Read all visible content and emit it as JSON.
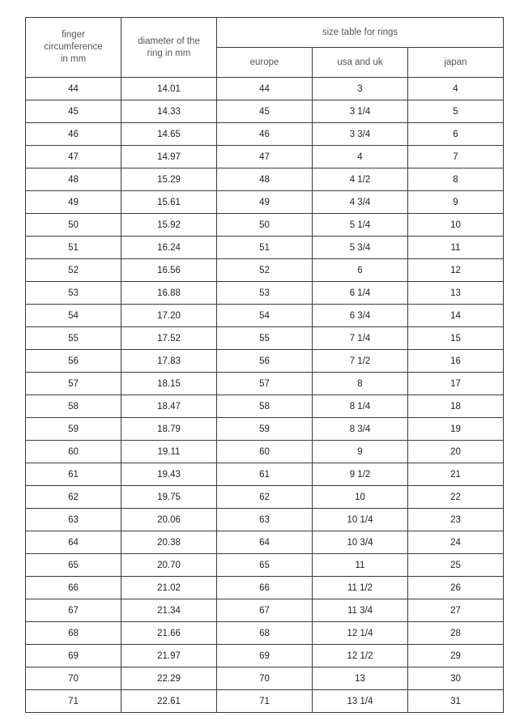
{
  "header": {
    "finger": "finger circumference in mm",
    "diameter": "diameter of the ring in mm",
    "group": "size table for rings",
    "europe": "europe",
    "usa_uk": "usa and uk",
    "japan": "japan"
  },
  "rows": [
    [
      "44",
      "14.01",
      "44",
      "3",
      "4"
    ],
    [
      "45",
      "14.33",
      "45",
      "3 1/4",
      "5"
    ],
    [
      "46",
      "14.65",
      "46",
      "3 3/4",
      "6"
    ],
    [
      "47",
      "14.97",
      "47",
      "4",
      "7"
    ],
    [
      "48",
      "15.29",
      "48",
      "4 1/2",
      "8"
    ],
    [
      "49",
      "15.61",
      "49",
      "4 3/4",
      "9"
    ],
    [
      "50",
      "15.92",
      "50",
      "5 1/4",
      "10"
    ],
    [
      "51",
      "16.24",
      "51",
      "5 3/4",
      "11"
    ],
    [
      "52",
      "16.56",
      "52",
      "6",
      "12"
    ],
    [
      "53",
      "16.88",
      "53",
      "6 1/4",
      "13"
    ],
    [
      "54",
      "17.20",
      "54",
      "6 3/4",
      "14"
    ],
    [
      "55",
      "17.52",
      "55",
      "7 1/4",
      "15"
    ],
    [
      "56",
      "17.83",
      "56",
      "7 1/2",
      "16"
    ],
    [
      "57",
      "18.15",
      "57",
      "8",
      "17"
    ],
    [
      "58",
      "18.47",
      "58",
      "8 1/4",
      "18"
    ],
    [
      "59",
      "18.79",
      "59",
      "8 3/4",
      "19"
    ],
    [
      "60",
      "19.11",
      "60",
      "9",
      "20"
    ],
    [
      "61",
      "19.43",
      "61",
      "9 1/2",
      "21"
    ],
    [
      "62",
      "19.75",
      "62",
      "10",
      "22"
    ],
    [
      "63",
      "20.06",
      "63",
      "10 1/4",
      "23"
    ],
    [
      "64",
      "20.38",
      "64",
      "10 3/4",
      "24"
    ],
    [
      "65",
      "20.70",
      "65",
      "11",
      "25"
    ],
    [
      "66",
      "21.02",
      "66",
      "11 1/2",
      "26"
    ],
    [
      "67",
      "21.34",
      "67",
      "11 3/4",
      "27"
    ],
    [
      "68",
      "21.66",
      "68",
      "12 1/4",
      "28"
    ],
    [
      "69",
      "21.97",
      "69",
      "12 1/2",
      "29"
    ],
    [
      "70",
      "22.29",
      "70",
      "13",
      "30"
    ],
    [
      "71",
      "22.61",
      "71",
      "13 1/4",
      "31"
    ]
  ]
}
